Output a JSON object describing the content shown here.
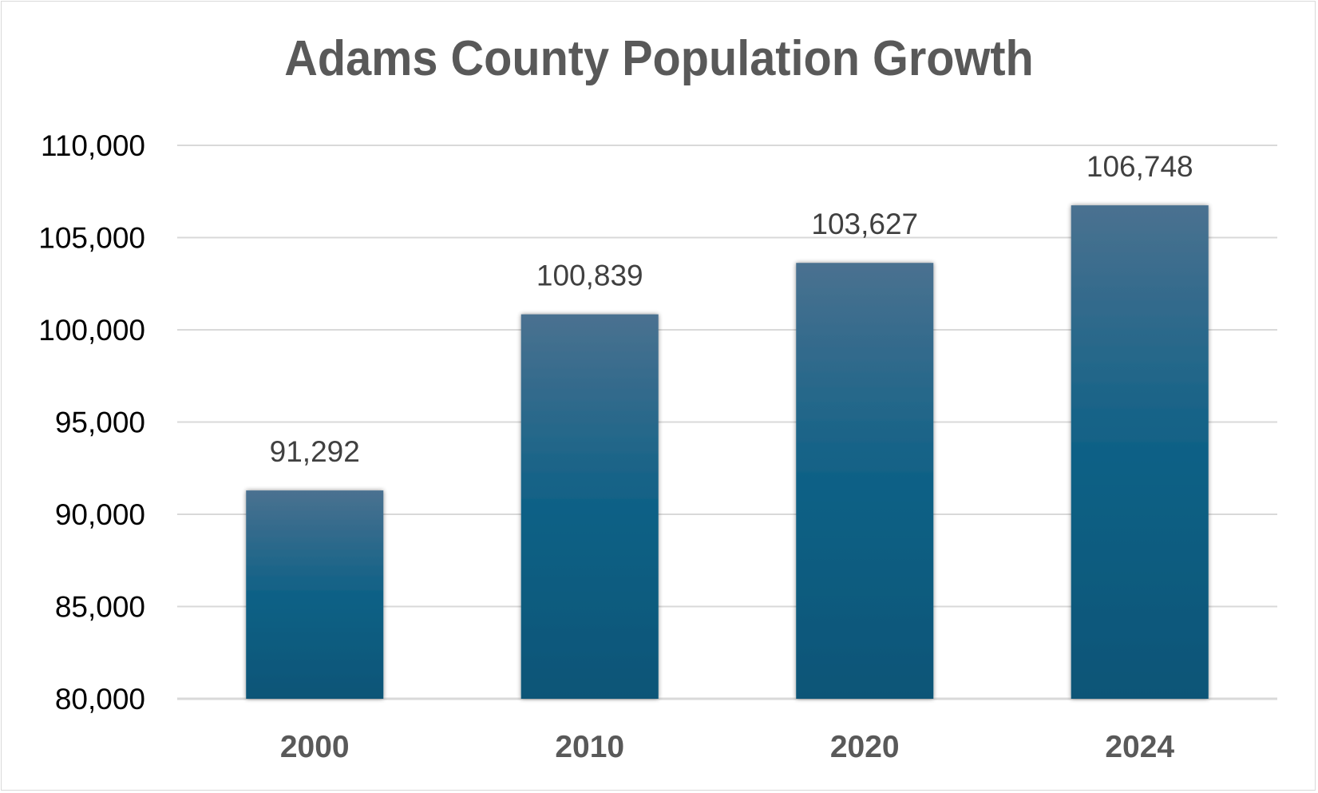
{
  "chart_data": {
    "type": "bar",
    "title": "Adams County Population Growth",
    "categories": [
      "2000",
      "2010",
      "2020",
      "2024"
    ],
    "values": [
      91292,
      100839,
      103627,
      106748
    ],
    "data_labels": [
      "91,292",
      "100,839",
      "103,627",
      "106,748"
    ],
    "xlabel": "",
    "ylabel": "",
    "ylim": [
      80000,
      110000
    ],
    "y_ticks": [
      80000,
      85000,
      90000,
      95000,
      100000,
      105000,
      110000
    ],
    "y_tick_labels": [
      "80,000",
      "85,000",
      "90,000",
      "95,000",
      "100,000",
      "105,000",
      "110,000"
    ],
    "grid": true,
    "legend": "none",
    "colors": {
      "bar_top": "#4a7190",
      "bar_mid": "#0f6186",
      "bar_bottom": "#0a5577",
      "grid": "#d9d9d9",
      "title": "#595959"
    }
  }
}
